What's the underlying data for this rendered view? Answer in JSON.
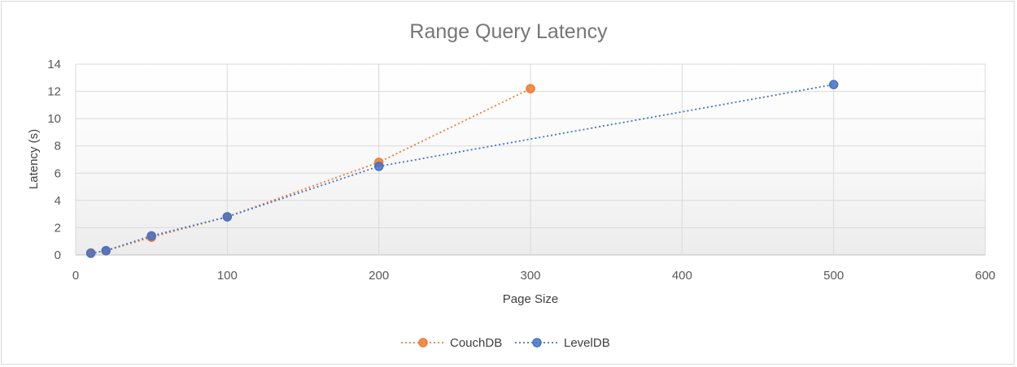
{
  "chart_data": {
    "type": "scatter",
    "title": "Range Query Latency",
    "xlabel": "Page Size",
    "ylabel": "Latency (s)",
    "xlim": [
      0,
      600
    ],
    "ylim": [
      0,
      14
    ],
    "x_ticks": [
      "0",
      "100",
      "200",
      "300",
      "400",
      "500",
      "600"
    ],
    "y_ticks": [
      "0",
      "2",
      "4",
      "6",
      "8",
      "10",
      "12",
      "14"
    ],
    "grid": true,
    "legend_position": "bottom",
    "series": [
      {
        "name": "CouchDB",
        "color": "#ed7d31",
        "x": [
          10,
          20,
          50,
          100,
          200,
          300
        ],
        "y": [
          0.15,
          0.3,
          1.3,
          2.8,
          6.8,
          12.2
        ]
      },
      {
        "name": "LevelDB",
        "color": "#4472c4",
        "x": [
          10,
          20,
          50,
          100,
          200,
          500
        ],
        "y": [
          0.12,
          0.32,
          1.4,
          2.8,
          6.5,
          12.5
        ]
      }
    ]
  }
}
